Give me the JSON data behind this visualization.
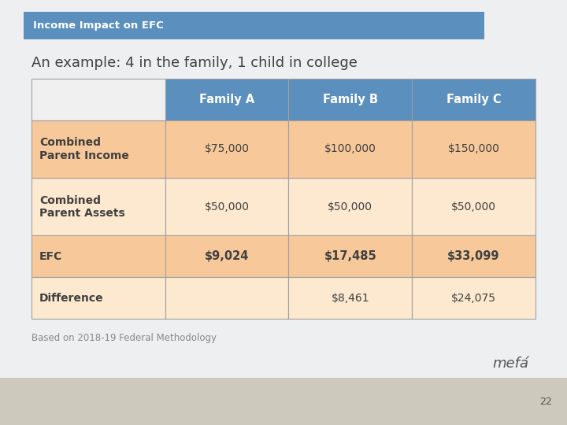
{
  "title_bar_text": "Income Impact on EFC",
  "title_bar_bg": "#5b8fbe",
  "title_bar_text_color": "#ffffff",
  "subtitle": "An example: 4 in the family, 1 child in college",
  "subtitle_color": "#404040",
  "slide_bg_top": "#eeeff0",
  "slide_bg_bottom": "#d8d4c8",
  "footnote": "Based on 2018-19 Federal Methodology",
  "footnote_color": "#888888",
  "page_number": "22",
  "header_bg": "#5b8fbe",
  "header_text_color": "#ffffff",
  "header_col0_bg": "#f0f0f0",
  "row1_bg": "#f7c99a",
  "row2_bg": "#fde8d0",
  "row3_bg": "#f7c99a",
  "row4_bg": "#fde8d0",
  "col_headers": [
    "",
    "Family A",
    "Family B",
    "Family C"
  ],
  "rows": [
    [
      "Combined\nParent Income",
      "$75,000",
      "$100,000",
      "$150,000"
    ],
    [
      "Combined\nParent Assets",
      "$50,000",
      "$50,000",
      "$50,000"
    ],
    [
      "EFC",
      "$9,024",
      "$17,485",
      "$33,099"
    ],
    [
      "Difference",
      "",
      "$8,461",
      "$24,075"
    ]
  ],
  "table_border_color": "#a0a0a0",
  "cell_text_color": "#404040",
  "label_text_color": "#404040",
  "mefa_color": "#555555",
  "bottom_bar_color": "#cdc9bc",
  "page_num_color": "#555555"
}
